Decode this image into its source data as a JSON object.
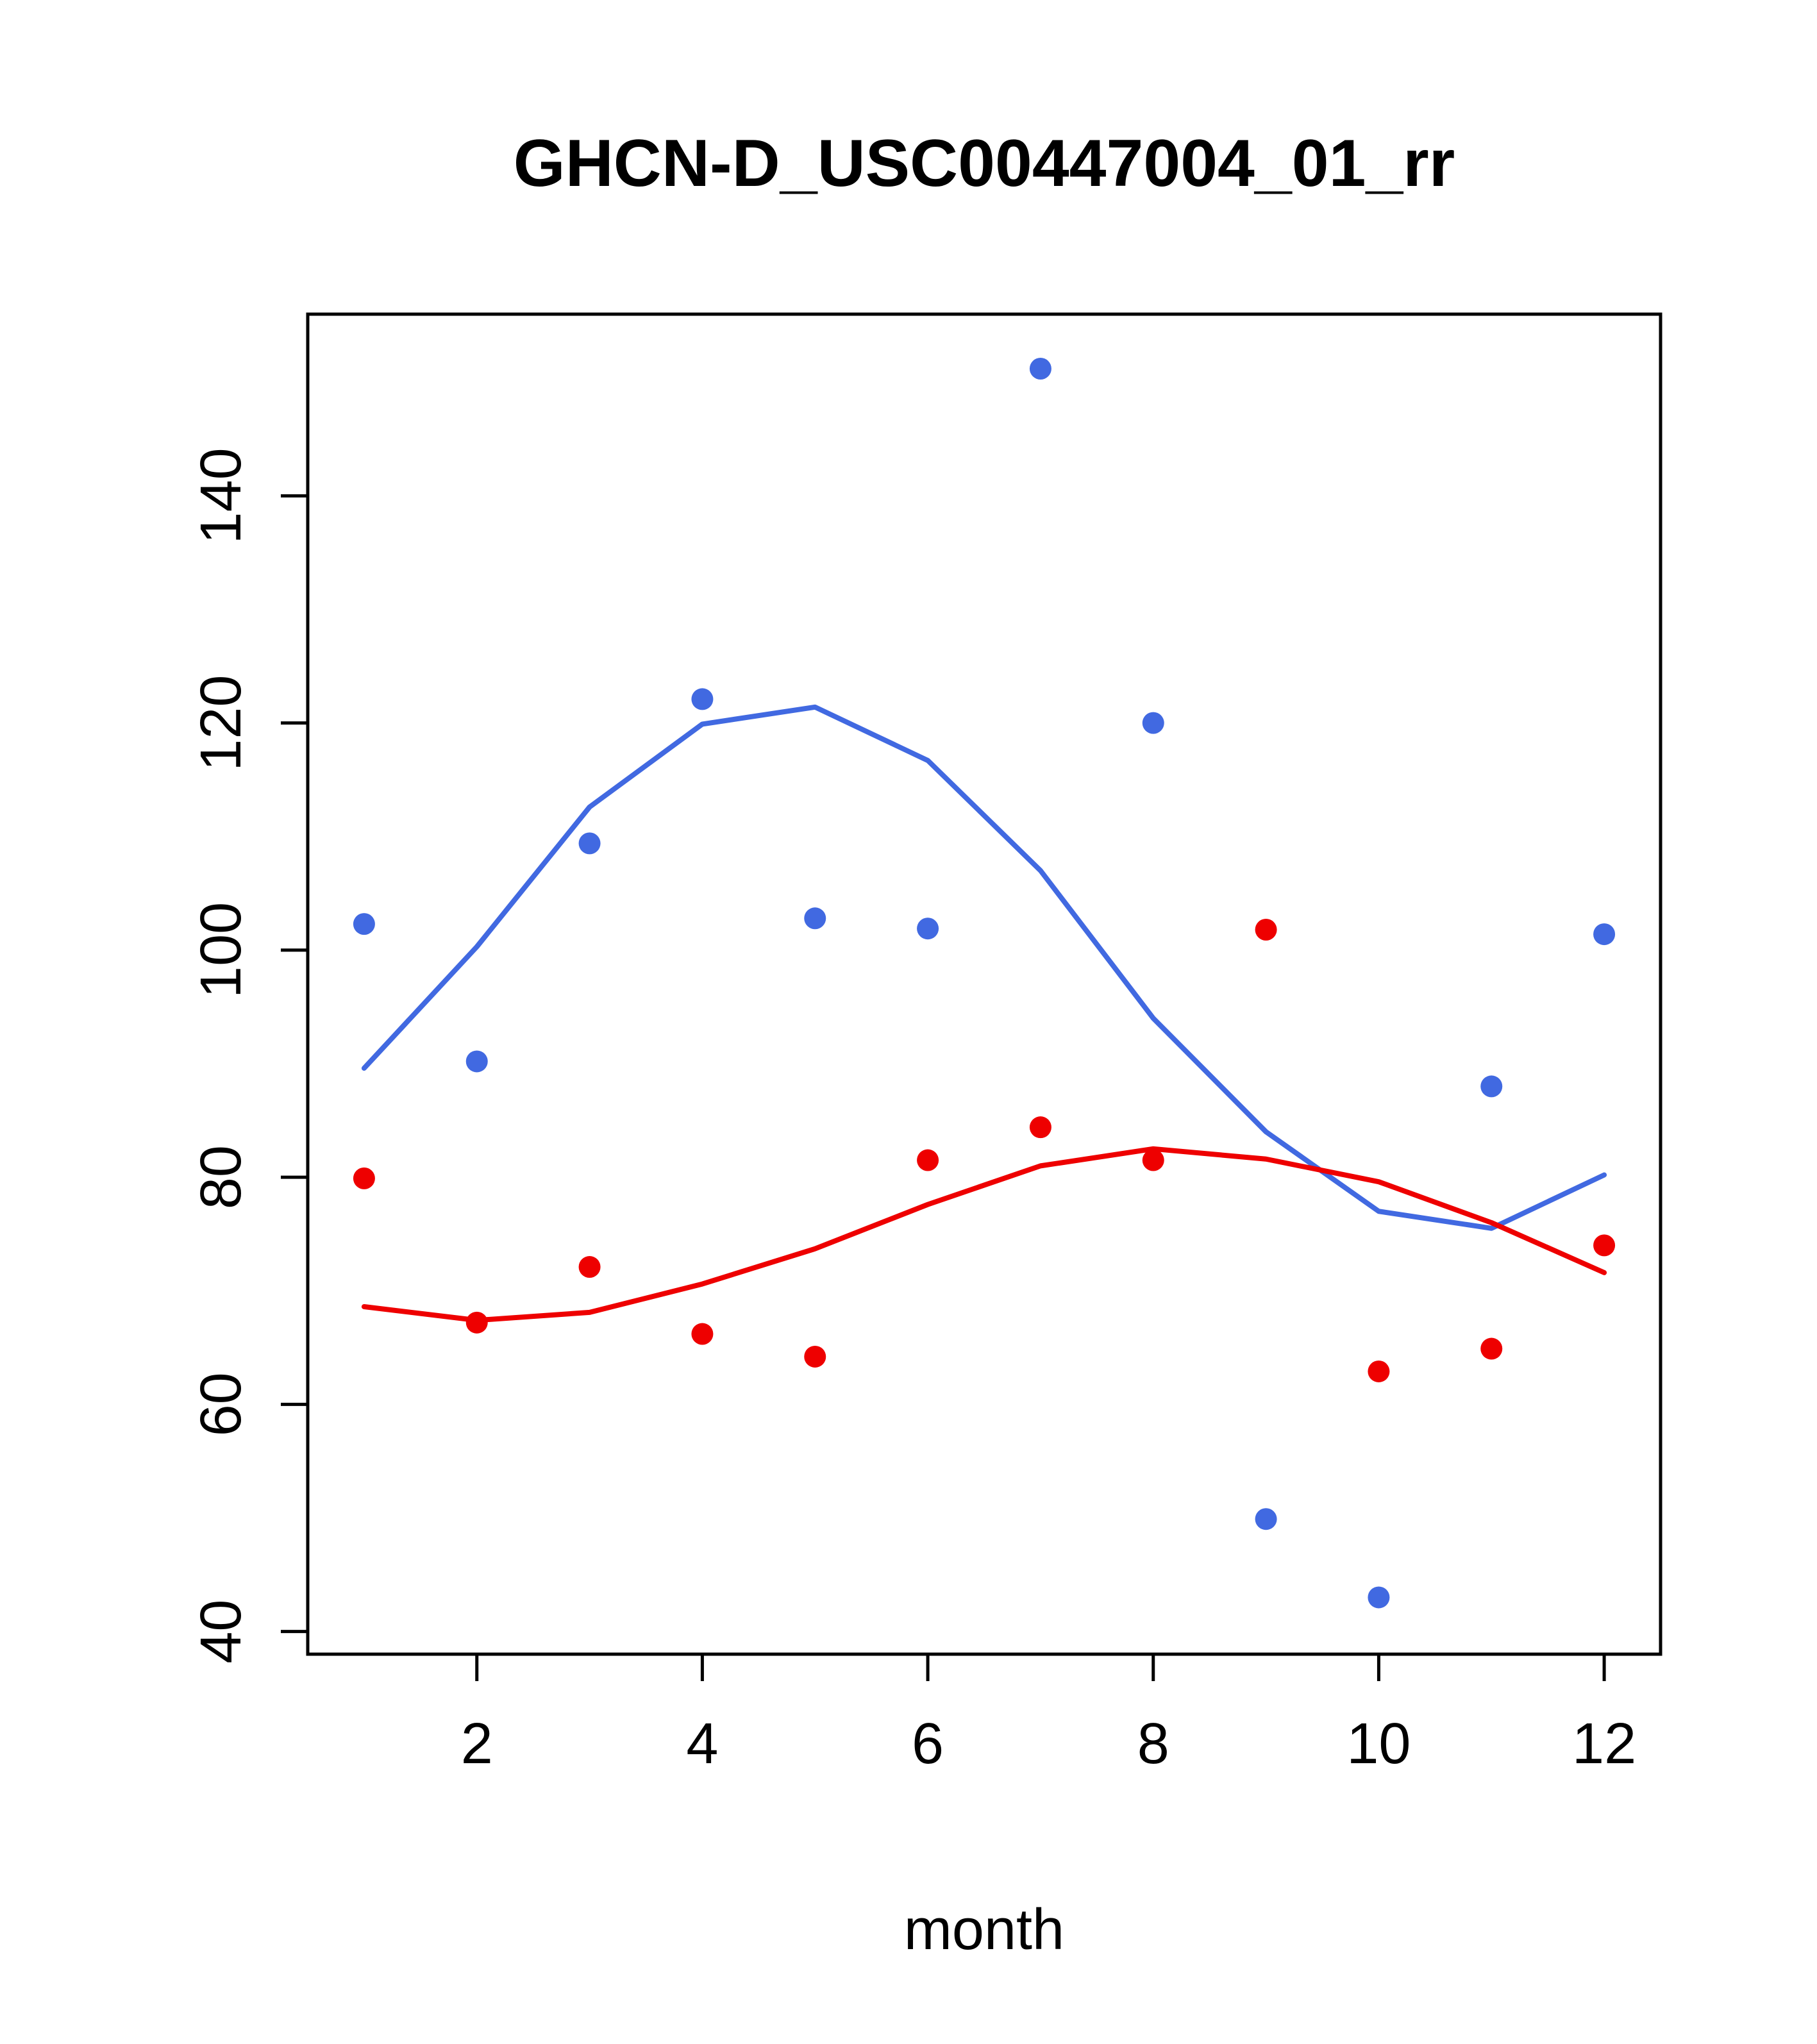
{
  "chart_data": {
    "type": "scatter",
    "title": "GHCN-D_USC00447004_01_rr",
    "xlabel": "month",
    "ylabel": "",
    "x": [
      1,
      2,
      3,
      4,
      5,
      6,
      7,
      8,
      9,
      10,
      11,
      12
    ],
    "xlim": [
      0.5,
      12.5
    ],
    "ylim": [
      38,
      156
    ],
    "x_ticks": [
      2,
      4,
      6,
      8,
      10,
      12
    ],
    "y_ticks": [
      40,
      60,
      80,
      100,
      120,
      140
    ],
    "grid": false,
    "legend_position": "none",
    "colors": {
      "blue": "#4169E1",
      "red": "#EE0000",
      "axis": "#000000",
      "background": "#FFFFFF"
    },
    "series": [
      {
        "name": "blue-points",
        "type": "points",
        "color": "#4169E1",
        "values": [
          102.3,
          90.2,
          109.4,
          122.1,
          102.8,
          101.9,
          151.2,
          120.0,
          49.9,
          43.0,
          88.0,
          101.4
        ]
      },
      {
        "name": "red-points",
        "type": "points",
        "color": "#EE0000",
        "values": [
          79.9,
          67.2,
          72.1,
          66.2,
          64.2,
          81.5,
          84.4,
          81.5,
          101.8,
          62.9,
          64.9,
          74.0
        ]
      },
      {
        "name": "blue-smooth-line",
        "type": "line",
        "color": "#4169E1",
        "values": [
          89.6,
          100.3,
          112.6,
          119.9,
          121.4,
          116.7,
          107.0,
          94.0,
          84.0,
          77.0,
          75.5,
          80.2
        ]
      },
      {
        "name": "red-smooth-line",
        "type": "line",
        "color": "#EE0000",
        "values": [
          68.6,
          67.4,
          68.1,
          70.6,
          73.7,
          77.6,
          81.0,
          82.5,
          81.6,
          79.6,
          76.0,
          71.6
        ]
      }
    ]
  }
}
